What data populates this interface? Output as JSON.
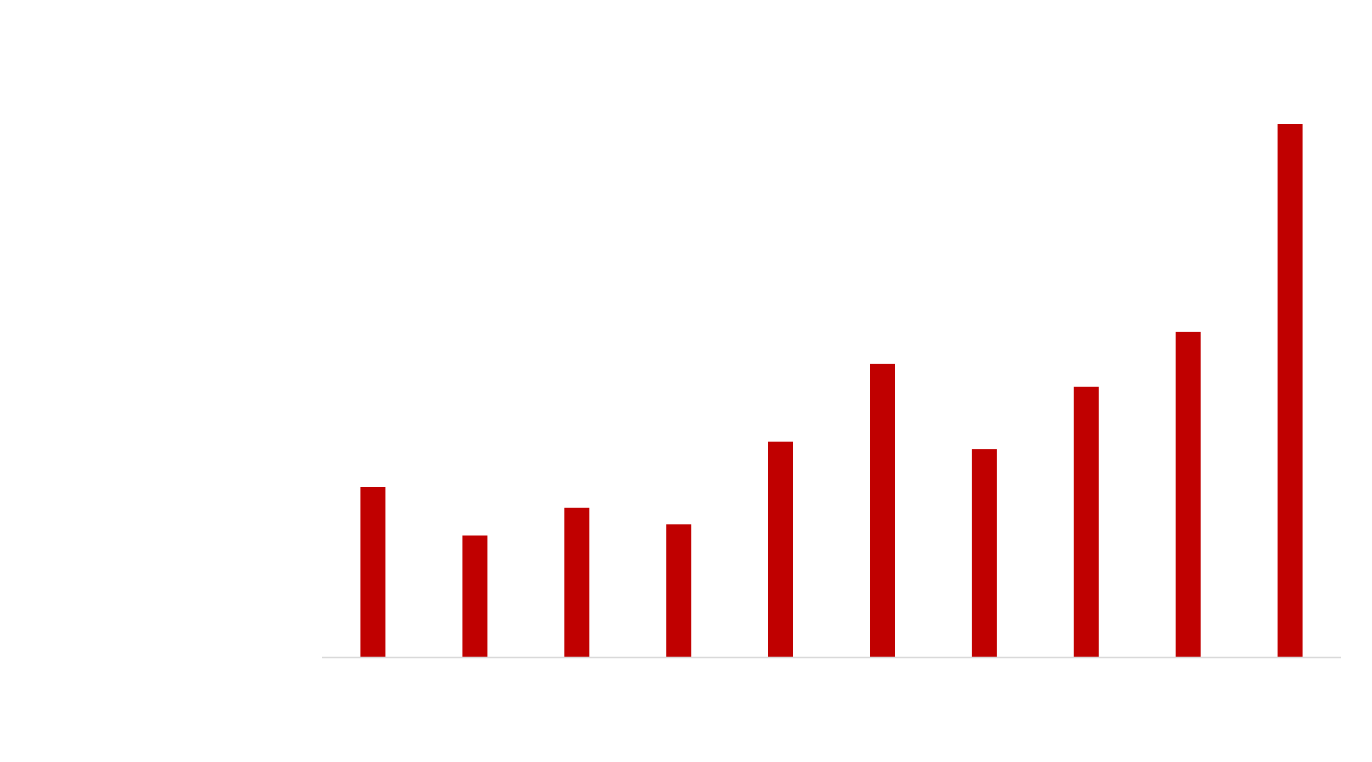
{
  "chart_data": {
    "type": "bar",
    "categories": [
      "",
      "",
      "",
      "",
      "",
      "",
      "",
      "",
      "",
      ""
    ],
    "series": [
      {
        "values": [
          31.9,
          22.8,
          28.0,
          24.9,
          40.4,
          55.0,
          39.0,
          50.7,
          61.0,
          100.0
        ],
        "color": "#c00000"
      }
    ],
    "ylim": [
      0,
      100
    ],
    "grid": false,
    "legend": "none",
    "axis_color": "#d9d9d9"
  }
}
